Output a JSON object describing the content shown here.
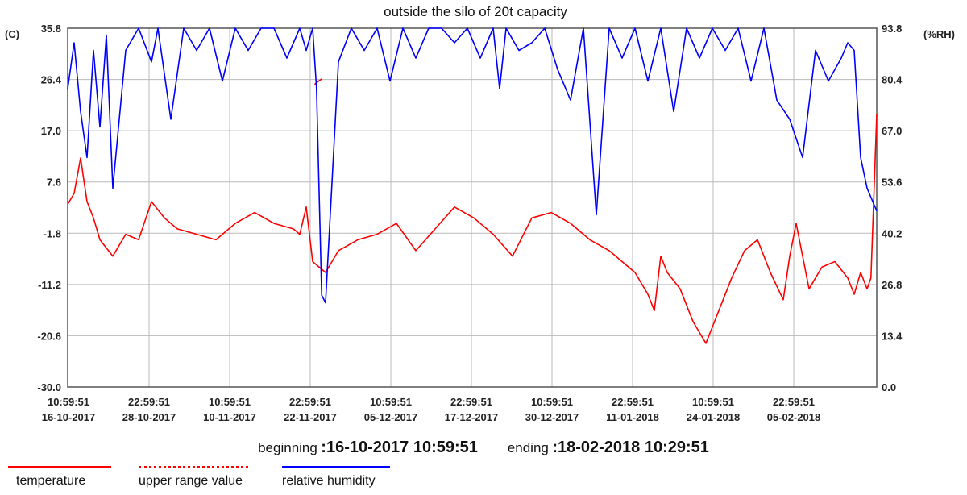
{
  "chart_data": {
    "type": "line",
    "title": "outside the silo of 20t capacity",
    "y_left_unit": "(C)",
    "y_right_unit": "(%RH)",
    "y_left_ticks": [
      "35.8",
      "26.4",
      "17.0",
      "7.6",
      "-1.8",
      "-11.2",
      "-20.6",
      "-30.0"
    ],
    "y_right_ticks": [
      "93.8",
      "80.4",
      "67.0",
      "53.6",
      "40.2",
      "26.8",
      "13.4",
      "0.0"
    ],
    "ylim_left": [
      -30.0,
      35.8
    ],
    "ylim_right": [
      0.0,
      93.8
    ],
    "x_ticks": [
      {
        "time": "10:59:51",
        "date": "16-10-2017"
      },
      {
        "time": "22:59:51",
        "date": "28-10-2017"
      },
      {
        "time": "10:59:51",
        "date": "10-11-2017"
      },
      {
        "time": "22:59:51",
        "date": "22-11-2017"
      },
      {
        "time": "10:59:51",
        "date": "05-12-2017"
      },
      {
        "time": "22:59:51",
        "date": "17-12-2017"
      },
      {
        "time": "10:59:51",
        "date": "30-12-2017"
      },
      {
        "time": "22:59:51",
        "date": "11-01-2018"
      },
      {
        "time": "10:59:51",
        "date": "24-01-2018"
      },
      {
        "time": "22:59:51",
        "date": "05-02-2018"
      }
    ],
    "grid": true,
    "legend_position": "bottom-left",
    "series": [
      {
        "name": "temperature",
        "axis": "left",
        "color": "#ff0000",
        "x_days": [
          0,
          1,
          2,
          3,
          4,
          5,
          7,
          9,
          11,
          13,
          15,
          17,
          20,
          23,
          26,
          29,
          32,
          35,
          36,
          37,
          38,
          39,
          40,
          42,
          45,
          48,
          51,
          54,
          57,
          60,
          63,
          66,
          69,
          72,
          75,
          78,
          81,
          84,
          86,
          88,
          90,
          91,
          92,
          93,
          95,
          97,
          99,
          101,
          103,
          105,
          107,
          109,
          111,
          112,
          113,
          115,
          117,
          119,
          121,
          122,
          123,
          124,
          124.6,
          125.5
        ],
        "values": [
          3.5,
          5.5,
          12,
          4,
          1,
          -3,
          -6,
          -2,
          -3,
          4,
          1,
          -1,
          -2,
          -3,
          0,
          2,
          0,
          -1,
          -2,
          3,
          -7,
          -8,
          -9,
          -5,
          -3,
          -2,
          0,
          -5,
          -1,
          3,
          1,
          -2,
          -6,
          1,
          2,
          0,
          -3,
          -5,
          -7,
          -9,
          -13,
          -16,
          -6,
          -9,
          -12,
          -18,
          -22,
          -16,
          -10,
          -5,
          -3,
          -9,
          -14,
          -6,
          0,
          -12,
          -8,
          -7,
          -10,
          -13,
          -9,
          -12,
          -10,
          20
        ]
      },
      {
        "name": "upper range value",
        "axis": "left",
        "color": "#ff0000",
        "x_days": [
          38.3,
          38.8,
          39.4
        ],
        "values": [
          25.5,
          26,
          26.5
        ]
      },
      {
        "name": "relative humidity",
        "axis": "right",
        "color": "#0000ff",
        "x_days": [
          0,
          1,
          2,
          3,
          4,
          5,
          6,
          7,
          9,
          11,
          13,
          14,
          16,
          18,
          20,
          22,
          24,
          26,
          28,
          30,
          32,
          34,
          36,
          37,
          38,
          38.6,
          39.4,
          40,
          42,
          44,
          46,
          48,
          50,
          52,
          54,
          56,
          58,
          60,
          62,
          64,
          66,
          67,
          68,
          70,
          72,
          74,
          76,
          78,
          80,
          82,
          84,
          86,
          88,
          90,
          92,
          94,
          96,
          98,
          100,
          102,
          104,
          106,
          108,
          110,
          112,
          114,
          116,
          118,
          120,
          121,
          122,
          123,
          124,
          125.5
        ],
        "values": [
          78,
          90,
          72,
          60,
          88,
          68,
          92,
          52,
          88,
          93.8,
          85,
          93.8,
          70,
          93.8,
          88,
          93.8,
          80,
          93.8,
          88,
          93.8,
          93.8,
          86,
          93.8,
          88,
          93.8,
          78,
          24,
          22,
          85,
          93.8,
          88,
          93.8,
          80,
          93.8,
          86,
          93.8,
          93.8,
          90,
          93.8,
          86,
          93.8,
          78,
          93.8,
          88,
          90,
          93.8,
          83,
          75,
          93.8,
          45,
          93.8,
          86,
          93.8,
          80,
          93.8,
          72,
          93.8,
          86,
          93.8,
          88,
          93.8,
          80,
          93.8,
          75,
          70,
          60,
          88,
          80,
          86,
          90,
          88,
          60,
          52,
          46
        ]
      }
    ]
  },
  "footer": {
    "beginning_label": "beginning",
    "beginning_value": ":16-10-2017 10:59:51",
    "ending_label": "ending",
    "ending_value": ":18-02-2018 10:29:51"
  },
  "legend": [
    {
      "label": "temperature",
      "color": "#ff0000",
      "style": "solid"
    },
    {
      "label": "upper range value",
      "color": "#ff0000",
      "style": "dotted"
    },
    {
      "label": "relative humidity",
      "color": "#0000ff",
      "style": "solid"
    }
  ]
}
